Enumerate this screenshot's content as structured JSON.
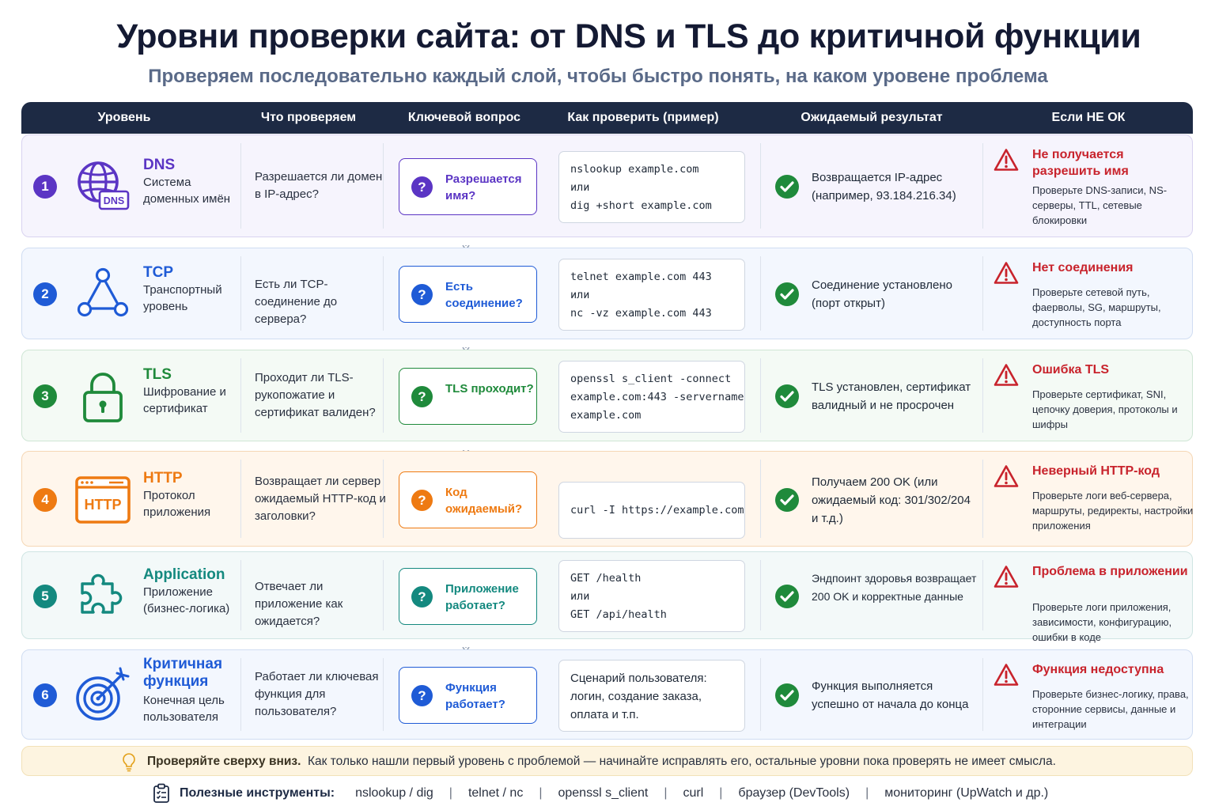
{
  "title": "Уровни проверки сайта: от DNS и TLS до критичной функции",
  "subtitle": "Проверяем последовательно каждый слой, чтобы быстро понять, на каком уровене проблема",
  "columns": [
    "Уровень",
    "Что проверяем",
    "Ключевой вопрос",
    "Как проверить (пример)",
    "Ожидаемый результат",
    "Если НЕ ОК"
  ],
  "levels": [
    {
      "num": "1",
      "name": "DNS",
      "desc": "Система доменных имён",
      "icon": "globe-dns-icon",
      "icon_label": "DNS",
      "what": "Разрешается ли домен в IP-адрес?",
      "question": "Разрешается имя?",
      "check": [
        "nslookup example.com",
        "или",
        "dig +short example.com"
      ],
      "expected": "Возвращается IP-адрес (например, 93.184.216.34)",
      "fail_title": "Не получается разрешить имя",
      "fail_desc": "Проверьте DNS-записи, NS-серверы, TTL, сетевые блокировки",
      "color": "#5b35c4",
      "row_bg": "#f6f4fd",
      "row_border": "#d9d3f0"
    },
    {
      "num": "2",
      "name": "TCP",
      "desc": "Транспортный уровень",
      "icon": "network-triangle-icon",
      "what": "Есть ли TCP-соединение до сервера?",
      "question": "Есть соединение?",
      "check": [
        "telnet example.com 443",
        "или",
        "nc -vz example.com 443"
      ],
      "expected": "Соединение установлено (порт открыт)",
      "fail_title": "Нет соединения",
      "fail_desc": "Проверьте сетевой путь, фаерволы, SG, маршруты, доступность порта",
      "color": "#1f5bd6",
      "row_bg": "#f3f7fe",
      "row_border": "#d0ddf2"
    },
    {
      "num": "3",
      "name": "TLS",
      "desc": "Шифрование и сертификат",
      "icon": "padlock-icon",
      "what": "Проходит ли TLS-рукопожатие и сертификат валиден?",
      "question": "TLS проходит?",
      "check": [
        "openssl s_client -connect",
        "example.com:443 -servername",
        "example.com"
      ],
      "expected": "TLS установлен, сертификат валидный и не просрочен",
      "fail_title": "Ошибка TLS",
      "fail_desc": "Проверьте сертификат, SNI, цепочку доверия, протоколы и шифры",
      "color": "#1f8a3b",
      "row_bg": "#f4faf5",
      "row_border": "#cfe6d5"
    },
    {
      "num": "4",
      "name": "HTTP",
      "desc": "Протокол приложения",
      "icon": "browser-window-icon",
      "icon_label": "HTTP",
      "what": "Возвращает ли сервер ожидаемый HTTP-код и заголовки?",
      "question": "Код ожидаемый?",
      "check": [
        "curl -I https://example.com"
      ],
      "expected": "Получаем 200 OK (или ожидаемый код: 301/302/204 и т.д.)",
      "fail_title": "Неверный HTTP-код",
      "fail_desc": "Проверьте логи веб-сервера, маршруты, редиректы, настройки приложения",
      "color": "#ee7a12",
      "row_bg": "#fff6ec",
      "row_border": "#f5d7b5"
    },
    {
      "num": "5",
      "name": "Application",
      "desc": "Приложение (бизнес-логика)",
      "icon": "puzzle-piece-icon",
      "what": "Отвечает ли приложение как ожидается?",
      "question": "Приложение работает?",
      "check": [
        "GET /health",
        "или",
        "GET /api/health"
      ],
      "expected": "Эндпоинт здоровья возвращает 200 OK и корректные данные",
      "fail_title": "Проблема в приложении",
      "fail_desc": "Проверьте логи приложения, зависимости, конфигурацию, ошибки в коде",
      "color": "#14897f",
      "row_bg": "#f3f9f9",
      "row_border": "#cfe5e3"
    },
    {
      "num": "6",
      "name": "Критичная функция",
      "desc": "Конечная цель пользователя",
      "icon": "target-arrow-icon",
      "what": "Работает ли ключевая функция для пользователя?",
      "question": "Функция работает?",
      "check": [
        "Сценарий пользователя:",
        "логин, создание заказа,",
        "оплата и т.п."
      ],
      "expected": "Функция выполняется успешно от начала до конца",
      "fail_title": "Функция недоступна",
      "fail_desc": "Проверьте бизнес-логику, права, сторонние сервисы, данные и интеграции",
      "color": "#1f5bd6",
      "row_bg": "#f3f7fe",
      "row_border": "#d0ddf2"
    }
  ],
  "tip": {
    "bold": "Проверяйте сверху вниз.",
    "text": "Как только нашли первый уровень с проблемой — начинайте исправлять его, остальные уровни пока проверять не имеет смысла."
  },
  "tools": {
    "label": "Полезные инструменты:",
    "items": [
      "nslookup / dig",
      "telnet / nc",
      "openssl s_client",
      "curl",
      "браузер (DevTools)",
      "мониторинг (UpWatch и др.)"
    ]
  },
  "colors": {
    "header_bg": "#1d2a44",
    "success": "#1f8a3b",
    "error": "#c8232c",
    "tip_bg": "#fdf4e0"
  }
}
